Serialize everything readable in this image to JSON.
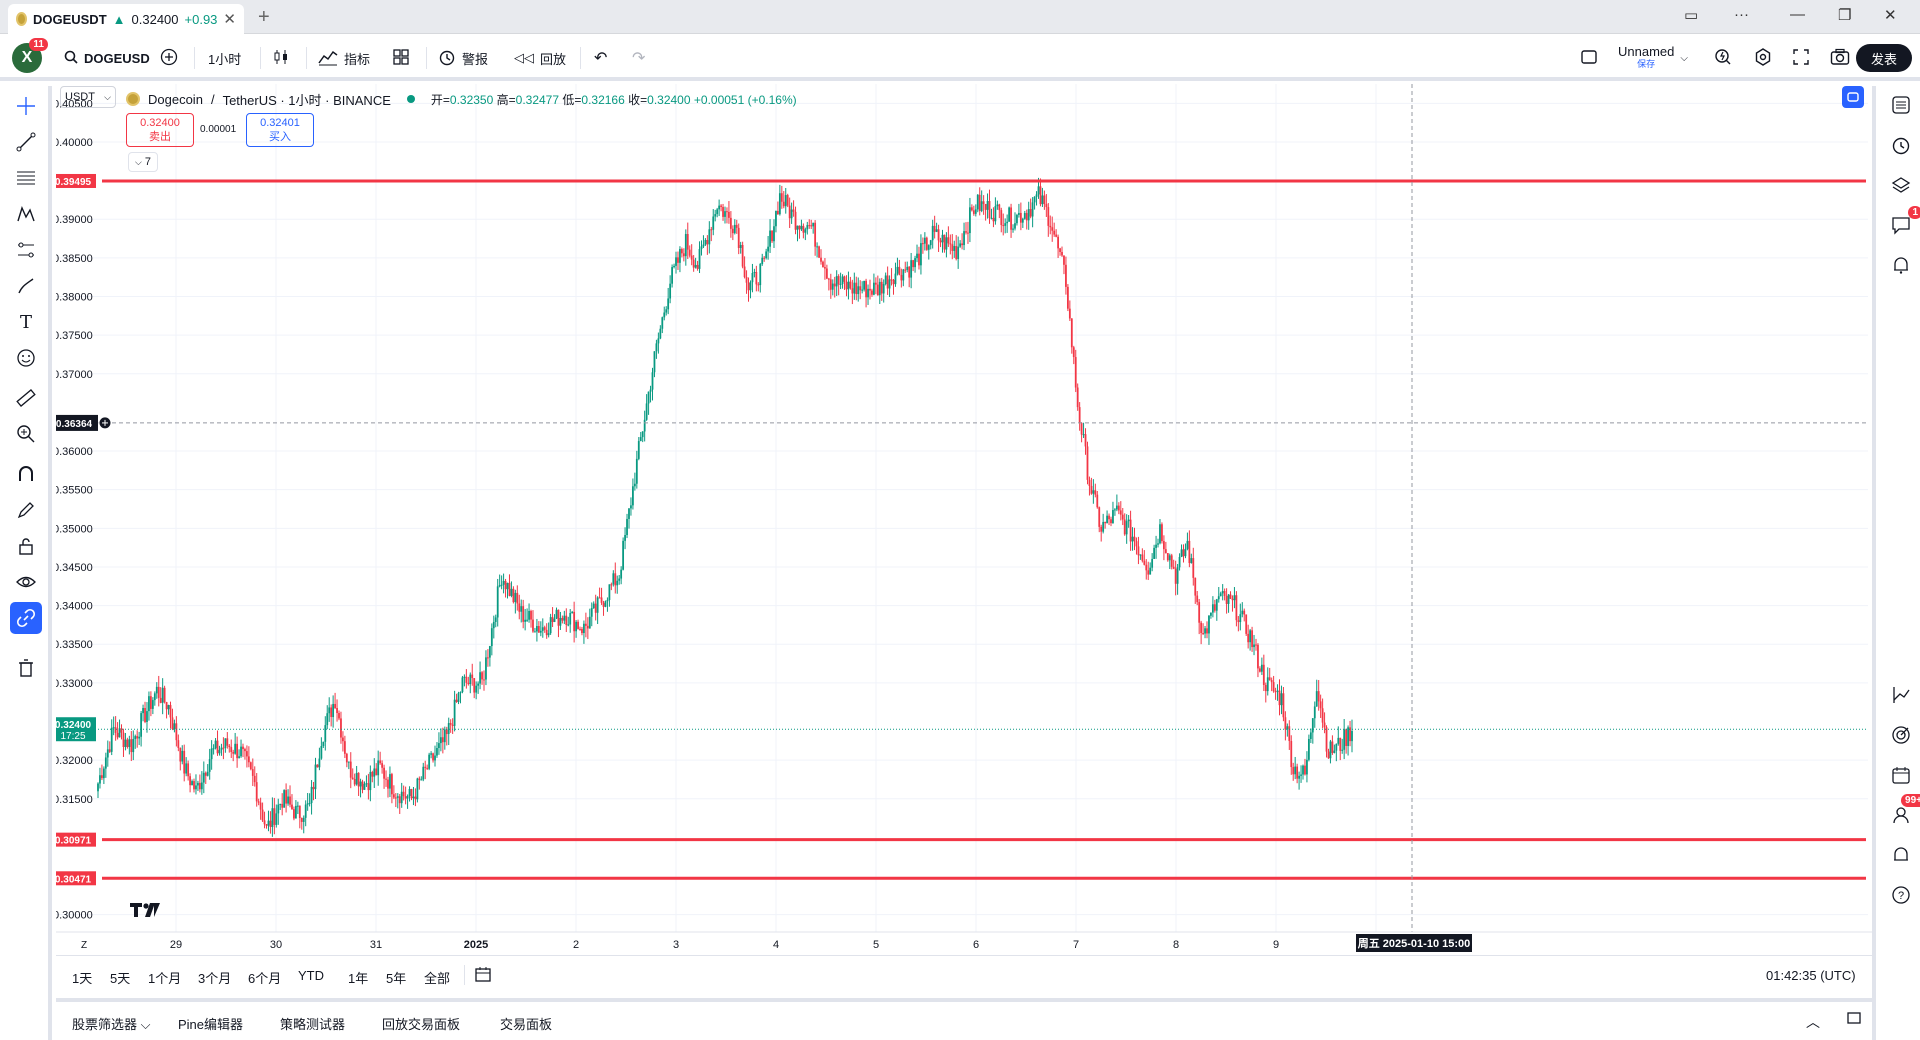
{
  "browser_tab": {
    "symbol": "DOGEUSDT",
    "price_arrow": "▲",
    "price": "0.32400",
    "change": "+0.93"
  },
  "toolbar": {
    "avatar_letter": "X",
    "notif_count": "11",
    "symbol_search": "DOGEUSD",
    "interval": "1小时",
    "indicators_label": "指标",
    "alerts_label": "警报",
    "replay_label": "回放",
    "layout_name": "Unnamed",
    "layout_status": "保存",
    "publish_label": "发表"
  },
  "legend": {
    "currency": "USDT",
    "name": "Dogecoin",
    "separator": "/",
    "quote": "TetherUS · 1小时 · BINANCE",
    "open_label": "开=",
    "open": "0.32350",
    "high_label": "高=",
    "high": "0.32477",
    "low_label": "低=",
    "low": "0.32166",
    "close_label": "收=",
    "close": "0.32400",
    "change": "+0.00051 (+0.16%)",
    "sell_price": "0.32400",
    "sell_label": "卖出",
    "spread": "0.00001",
    "buy_price": "0.32401",
    "buy_label": "买入",
    "collapse_count": "7"
  },
  "price_axis_labels": [
    "0.40500",
    "0.40000",
    "0.39000",
    "0.38500",
    "0.38000",
    "0.37500",
    "0.37000",
    "0.36000",
    "0.35500",
    "0.35000",
    "0.34500",
    "0.34000",
    "0.33500",
    "0.33000",
    "0.32000",
    "0.31500",
    "0.30000"
  ],
  "hlines": [
    {
      "price": 0.39495,
      "label": "0.39495"
    },
    {
      "price": 0.30971,
      "label": "0.30971"
    },
    {
      "price": 0.30471,
      "label": "0.30471"
    }
  ],
  "crosshair": {
    "price": 0.36364,
    "label": "0.36364",
    "time_label": "周五 2025-01-10   15:00"
  },
  "current_price": {
    "price": 0.324,
    "label": "0.32400",
    "countdown": "17:25"
  },
  "time_axis_labels": [
    "29",
    "30",
    "31",
    "2025",
    "2",
    "3",
    "4",
    "5",
    "6",
    "7",
    "8",
    "9",
    "10"
  ],
  "axis_z": "Z",
  "ranges": [
    "1天",
    "5天",
    "1个月",
    "3个月",
    "6个月",
    "YTD",
    "1年",
    "5年",
    "全部"
  ],
  "clock": "01:42:35 (UTC)",
  "panel_tabs": [
    "股票筛选器",
    "Pine编辑器",
    "策略测试器",
    "回放交易面板",
    "交易面板"
  ],
  "right_badges": {
    "chat": "1",
    "ideas": "99+"
  },
  "colors": {
    "up": "#089981",
    "down": "#f23645",
    "hline": "#f23645",
    "accent": "#2962ff"
  },
  "chart_data": {
    "type": "candlestick",
    "ylim": [
      0.2975,
      0.4075
    ],
    "anchors": [
      [
        0,
        0.317
      ],
      [
        8,
        0.324
      ],
      [
        17,
        0.322
      ],
      [
        24,
        0.326
      ],
      [
        30,
        0.329
      ],
      [
        36,
        0.327
      ],
      [
        44,
        0.319
      ],
      [
        50,
        0.316
      ],
      [
        58,
        0.321
      ],
      [
        66,
        0.322
      ],
      [
        73,
        0.321
      ],
      [
        80,
        0.317
      ],
      [
        86,
        0.311
      ],
      [
        94,
        0.315
      ],
      [
        102,
        0.313
      ],
      [
        108,
        0.314
      ],
      [
        114,
        0.323
      ],
      [
        121,
        0.328
      ],
      [
        128,
        0.319
      ],
      [
        136,
        0.317
      ],
      [
        144,
        0.319
      ],
      [
        152,
        0.316
      ],
      [
        160,
        0.315
      ],
      [
        168,
        0.319
      ],
      [
        178,
        0.323
      ],
      [
        186,
        0.33
      ],
      [
        196,
        0.33
      ],
      [
        206,
        0.344
      ],
      [
        216,
        0.339
      ],
      [
        226,
        0.337
      ],
      [
        238,
        0.339
      ],
      [
        248,
        0.337
      ],
      [
        258,
        0.341
      ],
      [
        266,
        0.344
      ],
      [
        276,
        0.36
      ],
      [
        284,
        0.372
      ],
      [
        292,
        0.382
      ],
      [
        300,
        0.387
      ],
      [
        306,
        0.384
      ],
      [
        316,
        0.392
      ],
      [
        326,
        0.389
      ],
      [
        332,
        0.381
      ],
      [
        340,
        0.384
      ],
      [
        348,
        0.393
      ],
      [
        356,
        0.39
      ],
      [
        364,
        0.389
      ],
      [
        374,
        0.382
      ],
      [
        386,
        0.381
      ],
      [
        398,
        0.381
      ],
      [
        406,
        0.383
      ],
      [
        416,
        0.384
      ],
      [
        426,
        0.388
      ],
      [
        438,
        0.386
      ],
      [
        448,
        0.392
      ],
      [
        458,
        0.391
      ],
      [
        466,
        0.39
      ],
      [
        474,
        0.391
      ],
      [
        480,
        0.393
      ],
      [
        486,
        0.39
      ],
      [
        494,
        0.382
      ],
      [
        500,
        0.366
      ],
      [
        506,
        0.356
      ],
      [
        512,
        0.35
      ],
      [
        520,
        0.352
      ],
      [
        528,
        0.349
      ],
      [
        536,
        0.345
      ],
      [
        542,
        0.35
      ],
      [
        550,
        0.344
      ],
      [
        556,
        0.348
      ],
      [
        564,
        0.336
      ],
      [
        572,
        0.341
      ],
      [
        580,
        0.34
      ],
      [
        588,
        0.336
      ],
      [
        596,
        0.33
      ],
      [
        604,
        0.328
      ],
      [
        610,
        0.319
      ],
      [
        616,
        0.318
      ],
      [
        622,
        0.33
      ],
      [
        628,
        0.321
      ],
      [
        634,
        0.322
      ],
      [
        640,
        0.324
      ]
    ]
  }
}
